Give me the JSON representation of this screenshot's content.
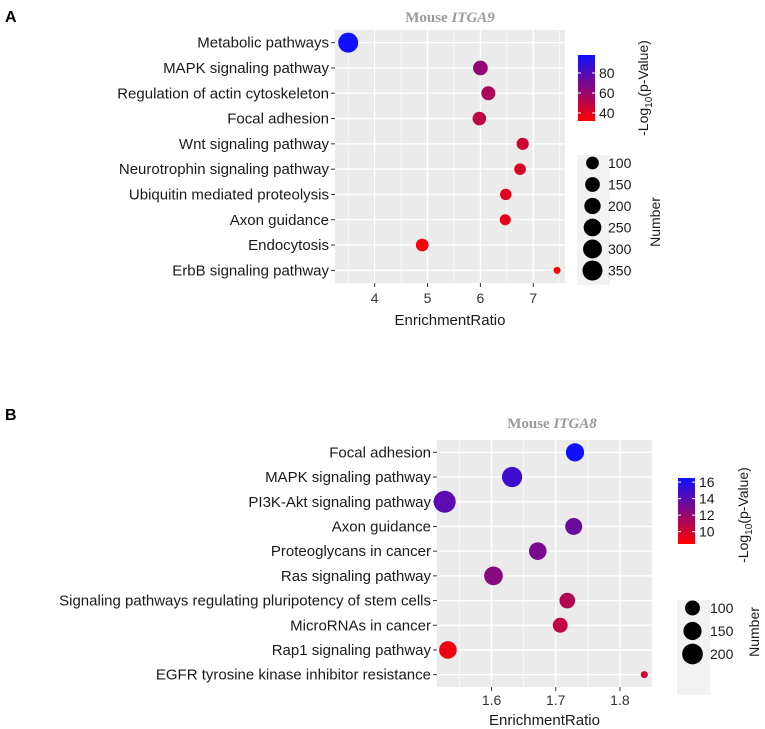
{
  "chart_data": [
    {
      "type": "scatter",
      "panel_label": "A",
      "title_prefix": "Mouse ",
      "title_gene": "ITGA9",
      "xlabel": "EnrichmentRatio",
      "xticks": [
        "4",
        "5",
        "6",
        "7"
      ],
      "xlim": [
        3.25,
        7.6
      ],
      "categories": [
        "Metabolic pathways",
        "MAPK signaling pathway",
        "Regulation of actin cytoskeleton",
        "Focal adhesion",
        "Wnt signaling pathway",
        "Neurotrophin signaling pathway",
        "Ubiquitin mediated proteolysis",
        "Axon guidance",
        "Endocytosis",
        "ErbB signaling pathway"
      ],
      "x": [
        3.5,
        6.0,
        6.15,
        5.98,
        6.8,
        6.75,
        6.48,
        6.47,
        4.9,
        7.45
      ],
      "number": [
        350,
        150,
        130,
        120,
        90,
        80,
        75,
        70,
        100,
        40
      ],
      "color_value": [
        98,
        62,
        55,
        50,
        45,
        42,
        40,
        38,
        35,
        32
      ],
      "color_title": "-Log",
      "color_title_sub": "10",
      "color_title_suffix": "(p-Value)",
      "color_range": [
        32,
        98
      ],
      "color_ticks": [
        "80",
        "60",
        "40"
      ],
      "color_tick_values": [
        80,
        60,
        40
      ],
      "size_title": "Number",
      "size_ticks": [
        "100",
        "150",
        "200",
        "250",
        "300",
        "350"
      ],
      "size_tick_values": [
        100,
        150,
        200,
        250,
        300,
        350
      ],
      "size_min": 40,
      "size_max": 350
    },
    {
      "type": "scatter",
      "panel_label": "B",
      "title_prefix": "Mouse ",
      "title_gene": "ITGA8",
      "xlabel": "EnrichmentRatio",
      "xticks": [
        "1.6",
        "1.7",
        "1.8"
      ],
      "xlim": [
        1.515,
        1.85
      ],
      "categories": [
        "Focal adhesion",
        "MAPK signaling pathway",
        "PI3K-Akt signaling pathway",
        "Axon guidance",
        "Proteoglycans in cancer",
        "Ras signaling pathway",
        "Signaling pathways regulating pluripotency of stem cells",
        "MicroRNAs in cancer",
        "Rap1 signaling pathway",
        "EGFR tyrosine kinase inhibitor resistance"
      ],
      "x": [
        1.73,
        1.632,
        1.527,
        1.728,
        1.672,
        1.603,
        1.718,
        1.707,
        1.532,
        1.838
      ],
      "number": [
        150,
        190,
        230,
        130,
        140,
        160,
        110,
        100,
        140,
        50
      ],
      "color_value": [
        16.5,
        15.0,
        14.0,
        13.5,
        13.0,
        12.5,
        11.0,
        10.5,
        9.0,
        10.0
      ],
      "color_title": "-Log",
      "color_title_sub": "10",
      "color_title_suffix": "(p-Value)",
      "color_range": [
        8.5,
        16.5
      ],
      "color_ticks": [
        "16",
        "14",
        "12",
        "10"
      ],
      "color_tick_values": [
        16,
        14,
        12,
        10
      ],
      "size_title": "Number",
      "size_ticks": [
        "100",
        "150",
        "200"
      ],
      "size_tick_values": [
        100,
        150,
        200
      ],
      "size_min": 50,
      "size_max": 230
    }
  ],
  "colors": {
    "low": "#ff0000",
    "high": "#1010ff",
    "panel_bg": "#ebebeb",
    "grid": "#ffffff"
  }
}
